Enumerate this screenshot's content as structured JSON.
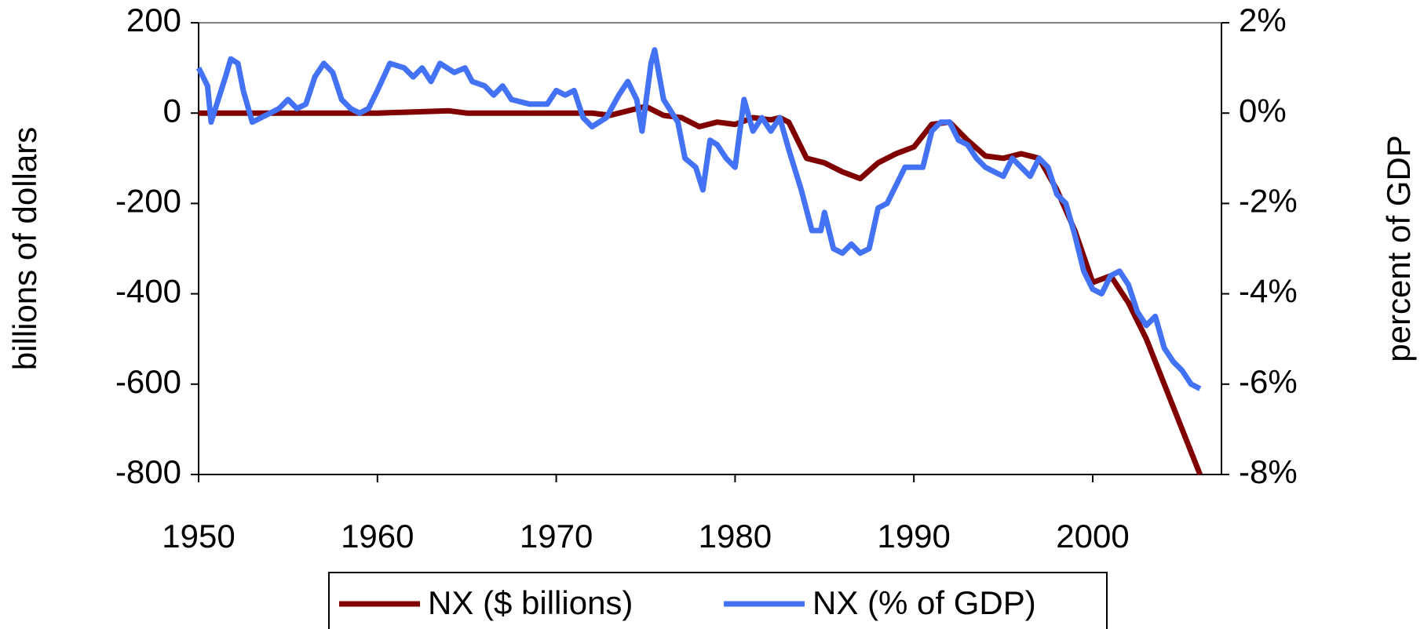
{
  "chart_data": {
    "type": "line",
    "y_label": "billions of dollars",
    "y2_label": "percent of GDP",
    "xlim": [
      1950,
      2007.2
    ],
    "xticks": [
      1950,
      1960,
      1970,
      1980,
      1990,
      2000
    ],
    "ylim": [
      -800,
      200
    ],
    "yticks": [
      -800,
      -600,
      -400,
      -200,
      0,
      200
    ],
    "y2lim": [
      -8,
      2
    ],
    "y2ticks": [
      {
        "value": -8,
        "label": "-8%"
      },
      {
        "value": -6,
        "label": "-6%"
      },
      {
        "value": -4,
        "label": "-4%"
      },
      {
        "value": -2,
        "label": "-2%"
      },
      {
        "value": 0,
        "label": "0%"
      },
      {
        "value": 2,
        "label": "2%"
      }
    ],
    "series": [
      {
        "name": "NX ($ billions)",
        "color": "#800000",
        "x": [
          1950,
          1955,
          1960,
          1964,
          1965,
          1970,
          1972,
          1973,
          1975,
          1976,
          1977,
          1978,
          1979,
          1980,
          1981,
          1982,
          1982.5,
          1983,
          1984,
          1985,
          1986,
          1987,
          1988,
          1989,
          1990,
          1991,
          1992,
          1993,
          1994,
          1995,
          1996,
          1997,
          1998,
          1999,
          2000,
          2001,
          2002,
          2003,
          2004,
          2005,
          2006
        ],
        "values": [
          0,
          0,
          0,
          5,
          0,
          0,
          0,
          -5,
          15,
          -5,
          -10,
          -30,
          -20,
          -25,
          -10,
          -15,
          -10,
          -20,
          -100,
          -110,
          -130,
          -145,
          -110,
          -90,
          -75,
          -25,
          -20,
          -60,
          -95,
          -100,
          -90,
          -100,
          -170,
          -260,
          -375,
          -360,
          -420,
          -500,
          -600,
          -700,
          -800
        ]
      },
      {
        "name": "NX (% of GDP)",
        "color": "#4472f4",
        "axis": "y2",
        "x": [
          1950,
          1950.5,
          1950.7,
          1951.5,
          1951.8,
          1952.2,
          1952.5,
          1953,
          1953.5,
          1954,
          1954.5,
          1955,
          1955.5,
          1956,
          1956.5,
          1957,
          1957.5,
          1958,
          1958.5,
          1959,
          1959.5,
          1960,
          1960.7,
          1961.5,
          1962,
          1962.5,
          1963,
          1963.5,
          1964.3,
          1964.9,
          1965.3,
          1966,
          1966.5,
          1967,
          1967.5,
          1968.5,
          1969.5,
          1970,
          1970.5,
          1971,
          1971.5,
          1972,
          1972.8,
          1973.5,
          1974,
          1974.5,
          1974.8,
          1975.3,
          1975.5,
          1976,
          1976.8,
          1977.2,
          1977.8,
          1978.2,
          1978.6,
          1979,
          1979.5,
          1980,
          1980.5,
          1981,
          1981.5,
          1982,
          1982.5,
          1983,
          1983.7,
          1984.3,
          1984.8,
          1985,
          1985.5,
          1986,
          1986.5,
          1987,
          1987.5,
          1988,
          1988.5,
          1989,
          1989.5,
          1990,
          1990.5,
          1991,
          1991.5,
          1992,
          1992.5,
          1993,
          1993.5,
          1994,
          1994.5,
          1995,
          1995.5,
          1996,
          1996.5,
          1997,
          1997.5,
          1998,
          1998.5,
          1999,
          1999.5,
          2000,
          2000.5,
          2001,
          2001.5,
          2002,
          2002.5,
          2003,
          2003.5,
          2004,
          2004.5,
          2005,
          2005.5,
          2006
        ],
        "values": [
          1.0,
          0.6,
          -0.2,
          0.8,
          1.2,
          1.1,
          0.5,
          -0.2,
          -0.1,
          0,
          0.1,
          0.3,
          0.1,
          0.2,
          0.8,
          1.1,
          0.9,
          0.3,
          0.1,
          0,
          0.1,
          0.5,
          1.1,
          1.0,
          0.8,
          1.0,
          0.7,
          1.1,
          0.9,
          1.0,
          0.7,
          0.6,
          0.4,
          0.6,
          0.3,
          0.2,
          0.2,
          0.5,
          0.4,
          0.5,
          -0.1,
          -0.3,
          -0.1,
          0.4,
          0.7,
          0.3,
          -0.4,
          1.1,
          1.4,
          0.3,
          -0.2,
          -1.0,
          -1.2,
          -1.7,
          -0.6,
          -0.7,
          -1.0,
          -1.2,
          0.3,
          -0.4,
          -0.1,
          -0.4,
          -0.1,
          -0.8,
          -1.7,
          -2.6,
          -2.6,
          -2.2,
          -3.0,
          -3.1,
          -2.9,
          -3.1,
          -3.0,
          -2.1,
          -2.0,
          -1.6,
          -1.2,
          -1.2,
          -1.2,
          -0.4,
          -0.2,
          -0.2,
          -0.6,
          -0.7,
          -1.0,
          -1.2,
          -1.3,
          -1.4,
          -1.0,
          -1.2,
          -1.4,
          -1.0,
          -1.2,
          -1.8,
          -2.0,
          -2.7,
          -3.5,
          -3.9,
          -4.0,
          -3.6,
          -3.5,
          -3.8,
          -4.4,
          -4.7,
          -4.5,
          -5.2,
          -5.5,
          -5.7,
          -6.0,
          -6.1
        ]
      }
    ]
  }
}
